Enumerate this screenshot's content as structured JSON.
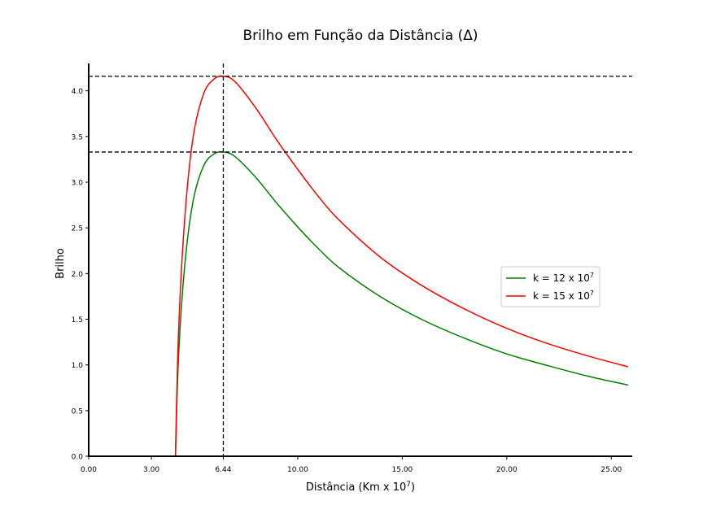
{
  "chart_data": {
    "type": "line",
    "title": "Brilho em Função da Distância (Δ)",
    "xlabel": {
      "text": "Distância (Km x 10",
      "sup": "7",
      "close": ")"
    },
    "ylabel": "Brilho",
    "xlim": [
      0,
      26
    ],
    "ylim": [
      0,
      4.3
    ],
    "x_ticks": [
      {
        "value": 0,
        "label": "0.00"
      },
      {
        "value": 3,
        "label": "3.00"
      },
      {
        "value": 6.44,
        "label": "6.44"
      },
      {
        "value": 10,
        "label": "10.00"
      },
      {
        "value": 15,
        "label": "15.00"
      },
      {
        "value": 20,
        "label": "20.00"
      },
      {
        "value": 25,
        "label": "25.00"
      }
    ],
    "y_ticks": [
      {
        "value": 0,
        "label": "0.0"
      },
      {
        "value": 0.5,
        "label": "0.5"
      },
      {
        "value": 1,
        "label": "1.0"
      },
      {
        "value": 1.5,
        "label": "1.5"
      },
      {
        "value": 2,
        "label": "2.0"
      },
      {
        "value": 2.5,
        "label": "2.5"
      },
      {
        "value": 3,
        "label": "3.0"
      },
      {
        "value": 3.5,
        "label": "3.5"
      },
      {
        "value": 4,
        "label": "4.0"
      }
    ],
    "x": [
      4.15,
      4.3,
      4.6,
      5.0,
      5.5,
      6.0,
      6.44,
      7.0,
      8.0,
      9.0,
      10.0,
      11.0,
      12.0,
      14.0,
      16.0,
      18.0,
      20.0,
      22.0,
      24.0,
      25.8
    ],
    "series": [
      {
        "name": "k = 12 x 10",
        "name_sup": "7",
        "color": "#008000",
        "values": [
          0.0,
          1.1,
          2.1,
          2.8,
          3.18,
          3.31,
          3.33,
          3.28,
          3.05,
          2.77,
          2.51,
          2.27,
          2.06,
          1.74,
          1.49,
          1.29,
          1.12,
          0.99,
          0.87,
          0.78
        ]
      },
      {
        "name": "k = 15 x 10",
        "name_sup": "7",
        "color": "#ff0000",
        "values": [
          0.0,
          1.37,
          2.62,
          3.5,
          3.97,
          4.13,
          4.16,
          4.1,
          3.81,
          3.46,
          3.14,
          2.84,
          2.58,
          2.17,
          1.86,
          1.61,
          1.4,
          1.23,
          1.09,
          0.98
        ]
      }
    ],
    "reference_lines": {
      "vertical_x": 6.44,
      "horizontal_y": [
        3.33,
        4.16
      ],
      "color": "#000000",
      "style": "dashed"
    },
    "legend_position": "center-right",
    "grid": false
  }
}
